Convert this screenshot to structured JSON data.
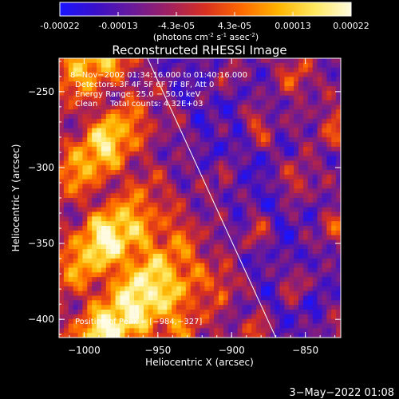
{
  "colorbar": {
    "stops": [
      "#1a14ff",
      "#3a10c8",
      "#6a1a9a",
      "#a02060",
      "#d83020",
      "#ff6a00",
      "#ffb400",
      "#ffe860",
      "#fffbe0"
    ],
    "tick_labels": [
      "-0.00022",
      "-0.00013",
      "-4.3e-05",
      "4.3e-05",
      "0.00013",
      "0.00022"
    ],
    "unit_label_parts": [
      "(photons cm",
      "-2",
      " s",
      "-1",
      " asec",
      "-2",
      ")"
    ]
  },
  "chart_data": {
    "type": "heatmap",
    "title": "Reconstructed RHESSI Image",
    "xlabel": "Heliocentric X (arcsec)",
    "ylabel": "Heliocentric Y (arcsec)",
    "xlim": [
      -1017,
      -826
    ],
    "ylim": [
      -412,
      -228
    ],
    "xticks": [
      -1000,
      -950,
      -900,
      -850
    ],
    "yticks": [
      -400,
      -350,
      -300,
      -250
    ],
    "x_tick_labels": [
      "−1000",
      "−950",
      "−900",
      "−850"
    ],
    "y_tick_labels": [
      "−400",
      "−350",
      "−300",
      "−250"
    ],
    "colormap": "RHESSI flux, blue-purple-red-yellow-white",
    "limb_line": {
      "x": [
        -957,
        -870
      ],
      "y": [
        -228,
        -412
      ]
    },
    "annotations": [
      "8−Nov−2002 01:34:16.000 to 01:40:16.000",
      "Detectors: 3F 4F 5F 6F 7F 8F, Att 0",
      "Energy Range: 25.0 − 50.0 keV",
      "Clean     Total counts: 4.32E+03"
    ],
    "peak_label": "Position of Peak = [−984,−327]"
  },
  "footer": {
    "timestamp": "3−May−2022 01:08"
  }
}
